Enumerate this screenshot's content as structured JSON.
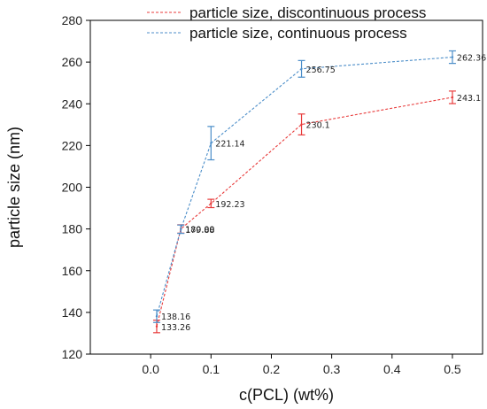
{
  "chart_data": {
    "type": "line",
    "xlabel": "c(PCL) (wt%)",
    "ylabel": "particle size (nm)",
    "xlim": [
      -0.1,
      0.55
    ],
    "ylim": [
      120,
      280
    ],
    "xticks": [
      "0.0",
      "0.1",
      "0.2",
      "0.3",
      "0.4",
      "0.5"
    ],
    "xtick_values": [
      0.0,
      0.1,
      0.2,
      0.3,
      0.4,
      0.5
    ],
    "yticks": [
      "120",
      "140",
      "160",
      "180",
      "200",
      "220",
      "240",
      "260",
      "280"
    ],
    "ytick_values": [
      120,
      140,
      160,
      180,
      200,
      220,
      240,
      260,
      280
    ],
    "legend_position": "top-right",
    "grid": false,
    "series": [
      {
        "name": "particle size, discontinuous process",
        "color": "#e83b3b",
        "line_style": "dashed",
        "x": [
          0.01,
          0.05,
          0.1,
          0.25,
          0.5
        ],
        "y": [
          133.26,
          180.0,
          192.23,
          230.1,
          243.1
        ],
        "error": [
          3.0,
          2.0,
          2.0,
          5.0,
          3.0
        ],
        "labels": [
          "133.26",
          "180.00",
          "192.23",
          "230.1",
          "243.1"
        ]
      },
      {
        "name": "particle size, continuous process",
        "color": "#4c8ec9",
        "line_style": "dashed",
        "x": [
          0.01,
          0.05,
          0.1,
          0.25,
          0.5
        ],
        "y": [
          138.16,
          179.88,
          221.14,
          256.75,
          262.36
        ],
        "error": [
          3.0,
          2.0,
          8.0,
          4.0,
          3.0
        ],
        "labels": [
          "138.16",
          "179.88",
          "221.14",
          "256.75",
          "262.36"
        ]
      }
    ]
  }
}
